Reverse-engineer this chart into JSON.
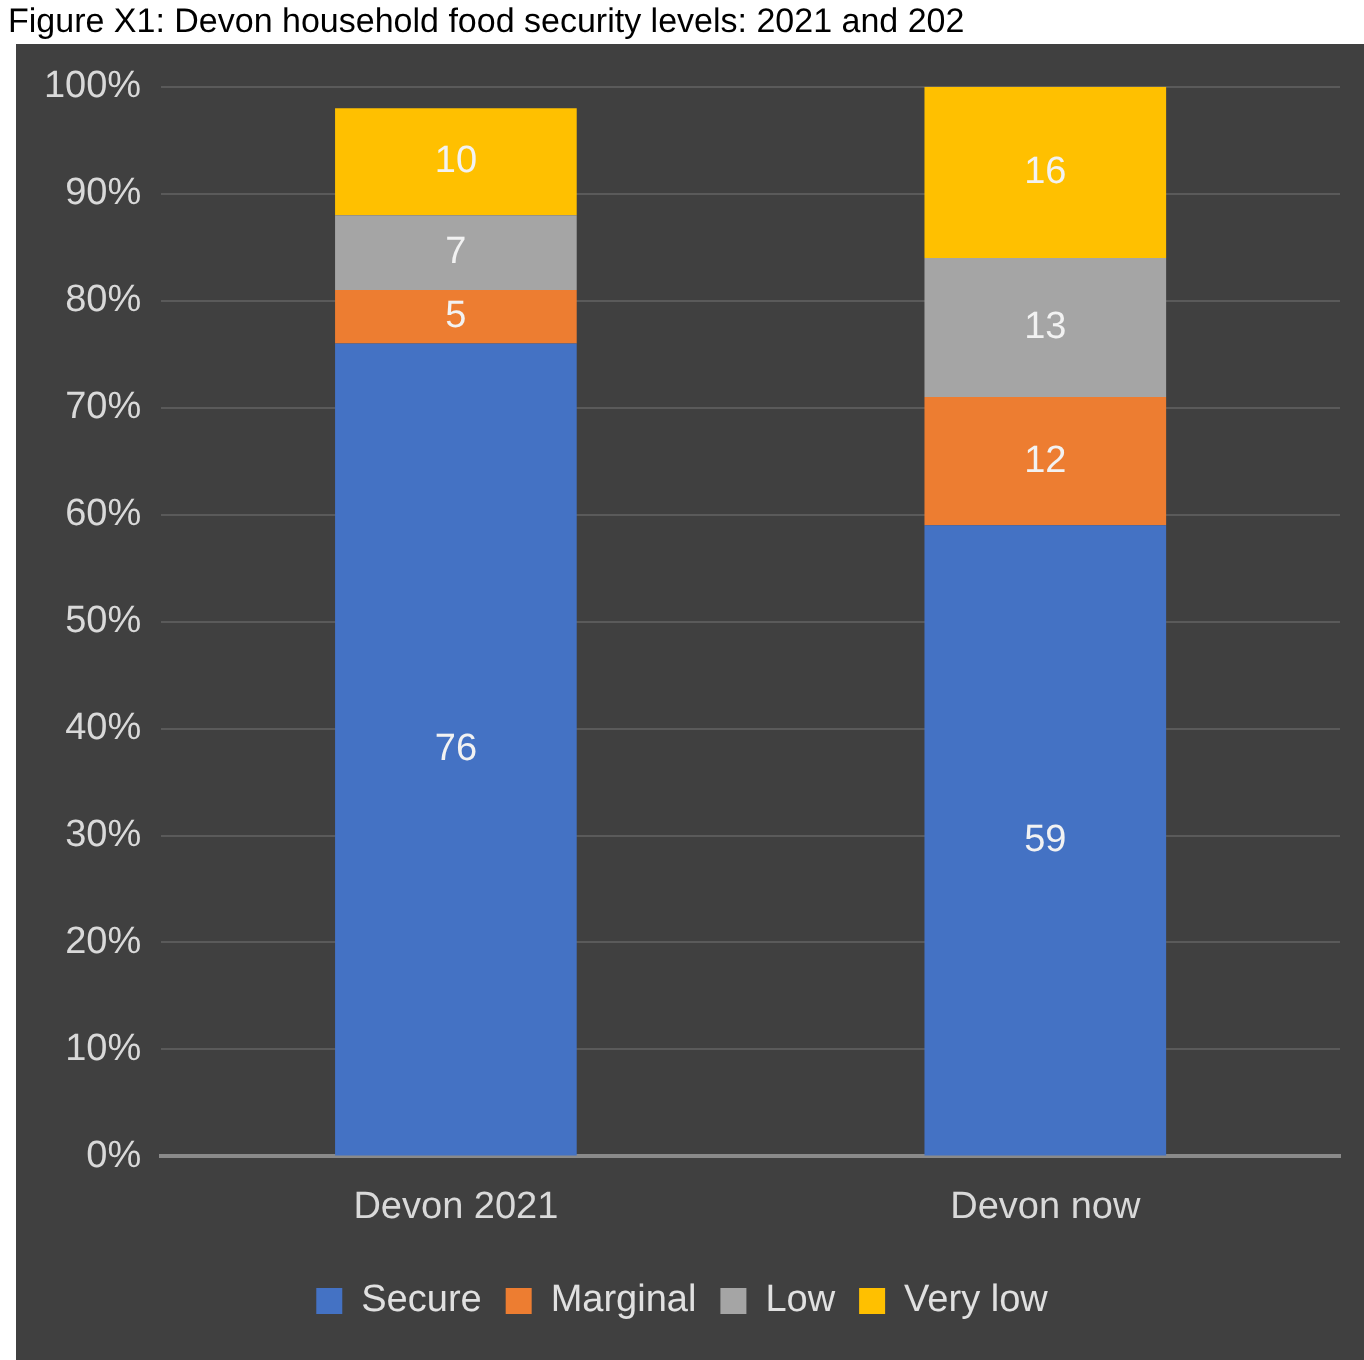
{
  "chart_data": {
    "type": "bar",
    "title": "Figure X1: Devon household food security levels: 2021 and 202",
    "categories": [
      "Devon 2021",
      "Devon now"
    ],
    "stacked": true,
    "series": [
      {
        "name": "Secure",
        "color": "#4472c4",
        "values": [
          76,
          59
        ]
      },
      {
        "name": "Marginal",
        "color": "#ed7d31",
        "values": [
          5,
          12
        ]
      },
      {
        "name": "Low",
        "color": "#a5a5a5",
        "values": [
          7,
          13
        ]
      },
      {
        "name": "Very low",
        "color": "#ffc000",
        "values": [
          10,
          16
        ]
      }
    ],
    "ylim": [
      0,
      100
    ],
    "yticks": [
      {
        "value": 0,
        "label": "0%"
      },
      {
        "value": 10,
        "label": "10%"
      },
      {
        "value": 20,
        "label": "20%"
      },
      {
        "value": 30,
        "label": "30%"
      },
      {
        "value": 40,
        "label": "40%"
      },
      {
        "value": 50,
        "label": "50%"
      },
      {
        "value": 60,
        "label": "60%"
      },
      {
        "value": 70,
        "label": "70%"
      },
      {
        "value": 80,
        "label": "80%"
      },
      {
        "value": 90,
        "label": "90%"
      },
      {
        "value": 100,
        "label": "100%"
      }
    ],
    "grid": "y",
    "legend": "bottom",
    "data_labels": true
  }
}
